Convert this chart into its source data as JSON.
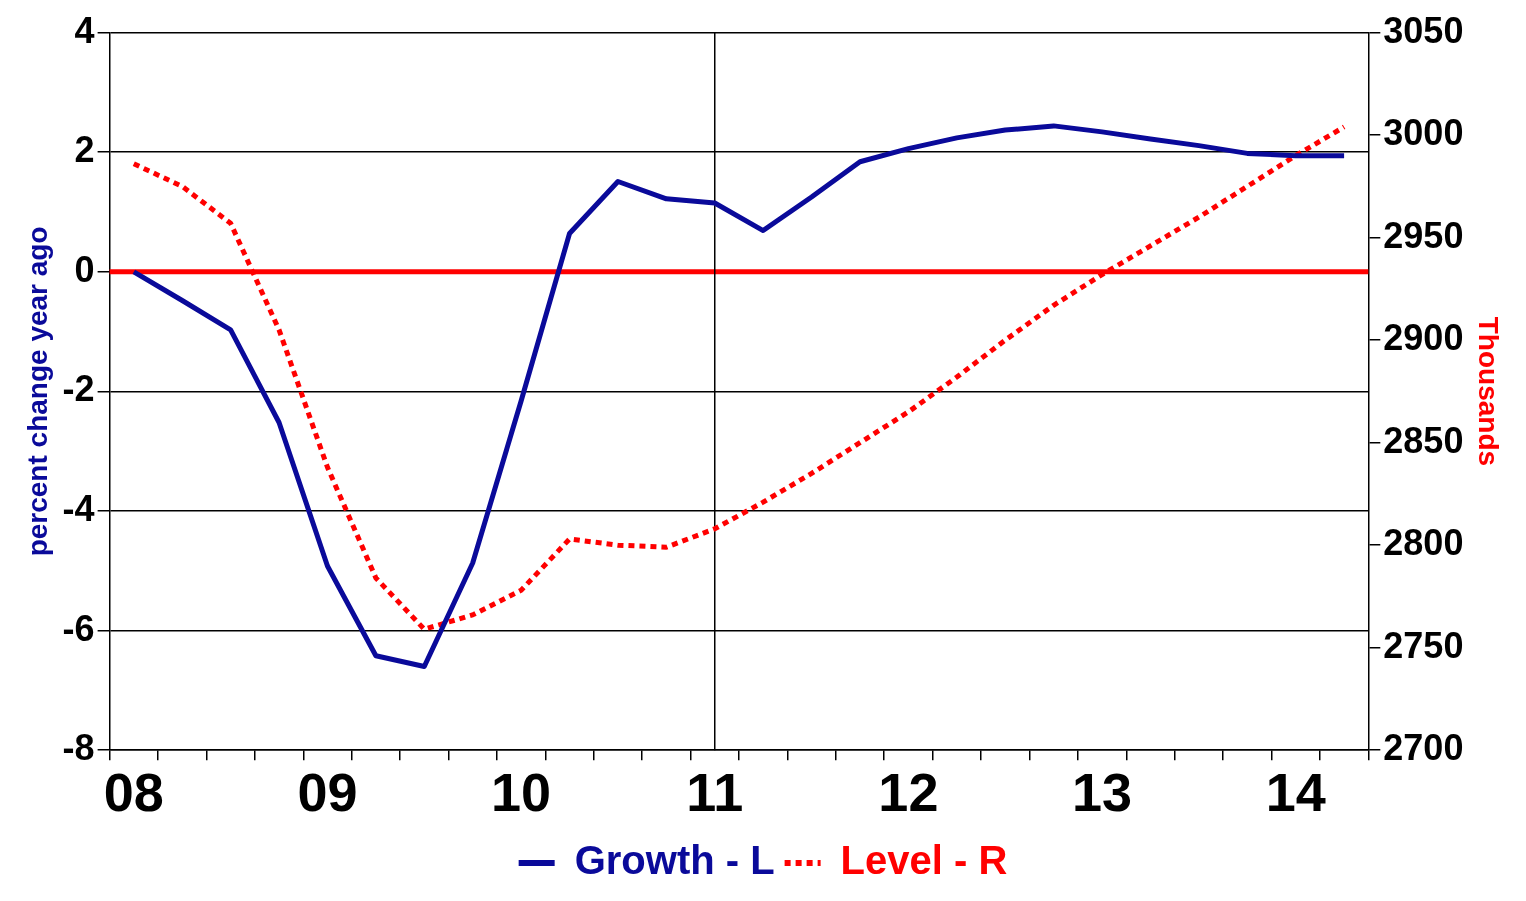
{
  "chart_data": {
    "type": "line",
    "xlabel": null,
    "ylabel": "percent change year ago",
    "y2label": "Thousands",
    "categories": [
      "08",
      null,
      null,
      null,
      "09",
      null,
      null,
      null,
      "10",
      null,
      null,
      null,
      "11",
      null,
      null,
      null,
      "12",
      null,
      null,
      null,
      "13",
      null,
      null,
      null,
      "14",
      null
    ],
    "series": [
      {
        "name": "Growth - L",
        "color": "#0a0a9a",
        "line_style": "solid",
        "values": [
          0.0,
          -0.48,
          -0.97,
          -2.52,
          -4.92,
          -6.42,
          -6.6,
          -4.87,
          -2.16,
          0.64,
          1.51,
          1.22,
          1.15,
          0.69,
          1.25,
          1.84,
          2.06,
          2.24,
          2.37,
          2.44,
          2.34,
          2.22,
          2.11,
          1.98,
          1.94,
          1.94
        ]
      },
      {
        "name": "Level - R",
        "color": "#ff0000",
        "line_style": "dotted",
        "axis": "y2",
        "values": [
          2986,
          2975,
          2957,
          2905,
          2838,
          2784,
          2759,
          2766,
          2778,
          2803,
          2800,
          2799,
          2808,
          2821,
          2835,
          2850,
          2865,
          2882,
          2900,
          2917,
          2932,
          2946,
          2960,
          2975,
          2990,
          3004
        ]
      }
    ],
    "ylim": [
      -8,
      4
    ],
    "yticks": [
      -8,
      -6,
      -4,
      -2,
      0,
      2,
      4
    ],
    "y2lim": [
      2700,
      3050
    ],
    "y2ticks": [
      2700,
      2750,
      2800,
      2850,
      2900,
      2950,
      3000,
      3050
    ],
    "ref_lines": [
      {
        "axis": "y",
        "value": 0,
        "label": null,
        "color": "#ff0000"
      },
      {
        "axis": "x",
        "value": "11",
        "label": null,
        "color": "#000000"
      }
    ],
    "grid": "y",
    "legend": "bottom",
    "marker": "none"
  }
}
